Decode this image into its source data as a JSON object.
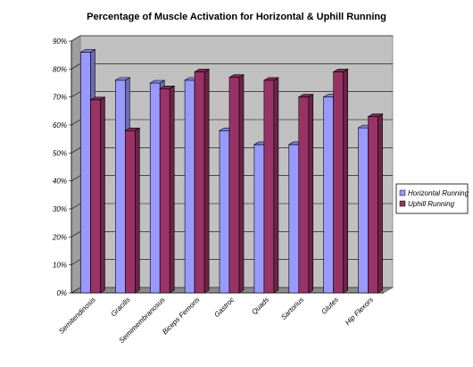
{
  "chart_data": {
    "type": "bar",
    "title": "Percentage of Muscle Activation for Horizontal & Uphill Running",
    "categories": [
      "Semitendinosis",
      "Gracilis",
      "Semimembranosus",
      "Biceps Femoris",
      "Gastroc",
      "Quads",
      "Sartorius",
      "Glutes",
      "Hip Flexors"
    ],
    "series": [
      {
        "name": "Horizontal Running",
        "color": "#9999ff",
        "values": [
          86,
          76,
          75,
          76,
          58,
          53,
          53,
          70,
          59
        ]
      },
      {
        "name": "Uphill Running",
        "color": "#993366",
        "values": [
          69,
          58,
          73,
          79,
          77,
          76,
          70,
          79,
          63
        ]
      }
    ],
    "ylim": [
      0,
      90
    ],
    "yticks": [
      "0%",
      "10%",
      "20%",
      "30%",
      "40%",
      "50%",
      "60%",
      "70%",
      "80%",
      "90%"
    ],
    "grid": true,
    "legend": "right",
    "background": "#c0c0c0"
  }
}
